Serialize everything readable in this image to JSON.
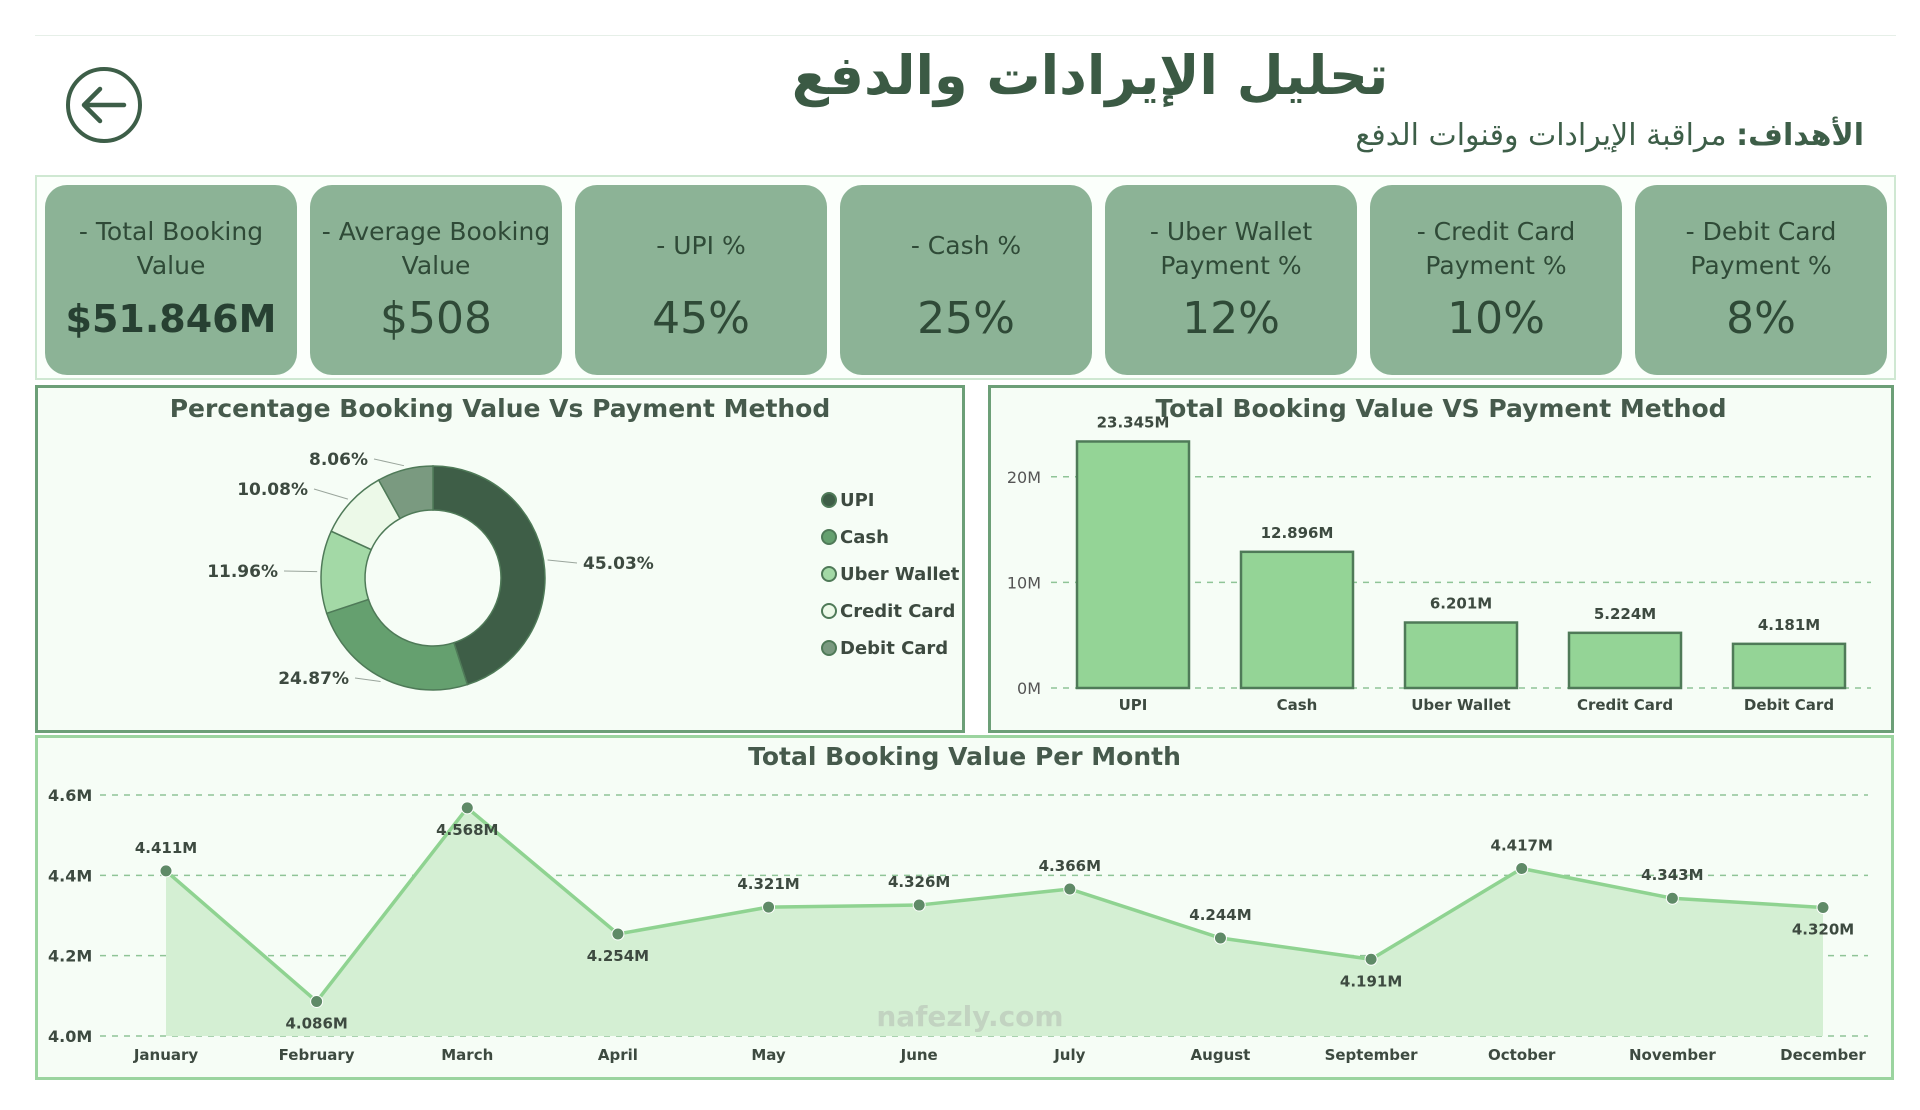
{
  "header": {
    "title": "تحليل الإيرادات والدفع",
    "objective_label": "الأهداف:",
    "objective_text": "مراقبة الإيرادات وقنوات الدفع"
  },
  "kpis": [
    {
      "label": "- Total Booking Value",
      "value": "$51.846M"
    },
    {
      "label": "- Average Booking Value",
      "value": "$508"
    },
    {
      "label": "- UPI %",
      "value": "45%"
    },
    {
      "label": "- Cash %",
      "value": "25%"
    },
    {
      "label": "- Uber Wallet Payment %",
      "value": "12%"
    },
    {
      "label": "- Credit Card Payment %",
      "value": "10%"
    },
    {
      "label": "- Debit Card Payment %",
      "value": "8%"
    }
  ],
  "watermark": "nafezly.com",
  "chart_data": [
    {
      "type": "pie",
      "title": "Percentage Booking Value Vs Payment Method",
      "legend_position": "right",
      "categories": [
        "UPI",
        "Cash",
        "Uber Wallet",
        "Credit Card",
        "Debit Card"
      ],
      "values": [
        45.03,
        24.87,
        11.96,
        10.08,
        8.06
      ],
      "labels": [
        "45.03%",
        "24.87%",
        "11.96%",
        "10.08%",
        "8.06%"
      ],
      "colors": [
        "#3e5e47",
        "#65a06f",
        "#a3d9a6",
        "#ecf9e8",
        "#7a9a80"
      ]
    },
    {
      "type": "bar",
      "title": "Total Booking Value VS Payment Method",
      "categories": [
        "UPI",
        "Cash",
        "Uber Wallet",
        "Credit Card",
        "Debit Card"
      ],
      "values": [
        23.345,
        12.896,
        6.201,
        5.224,
        4.181
      ],
      "labels": [
        "23.345M",
        "12.896M",
        "6.201M",
        "5.224M",
        "4.181M"
      ],
      "yticks": [
        "0M",
        "10M",
        "20M"
      ],
      "ylim": [
        0,
        25
      ],
      "grid": true,
      "bar_color": "#94d496"
    },
    {
      "type": "area",
      "title": "Total Booking Value Per Month",
      "categories": [
        "January",
        "February",
        "March",
        "April",
        "May",
        "June",
        "July",
        "August",
        "September",
        "October",
        "November",
        "December"
      ],
      "values": [
        4.411,
        4.086,
        4.568,
        4.254,
        4.321,
        4.326,
        4.366,
        4.244,
        4.191,
        4.417,
        4.343,
        4.32
      ],
      "labels": [
        "4.411M",
        "4.086M",
        "4.568M",
        "4.254M",
        "4.321M",
        "4.326M",
        "4.366M",
        "4.244M",
        "4.191M",
        "4.417M",
        "4.343M",
        "4.320M"
      ],
      "yticks": [
        "4.0M",
        "4.2M",
        "4.4M",
        "4.6M"
      ],
      "ylim": [
        4.0,
        4.6
      ],
      "grid": true,
      "line_color": "#8fd391",
      "fill_color": "#d4efd3"
    }
  ]
}
